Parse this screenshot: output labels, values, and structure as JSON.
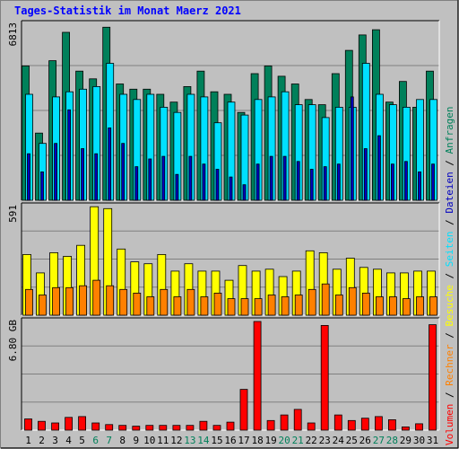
{
  "chart_data": {
    "title": "Tages-Statistik im Monat Maerz 2021",
    "type": "bar",
    "x": [
      "1",
      "2",
      "3",
      "4",
      "5",
      "6",
      "7",
      "8",
      "9",
      "10",
      "11",
      "12",
      "13",
      "14",
      "15",
      "16",
      "17",
      "18",
      "19",
      "20",
      "21",
      "22",
      "23",
      "24",
      "25",
      "26",
      "27",
      "28",
      "29",
      "30",
      "31"
    ],
    "weekend_days": [
      "6",
      "7",
      "13",
      "14",
      "20",
      "21",
      "27",
      "28"
    ],
    "right_legend": [
      "Anfragen",
      "Dateien",
      "Seiten",
      "Besuche",
      "Rechner",
      "Volumen"
    ],
    "panels": [
      {
        "ylabel": "6813",
        "ymax": 6813,
        "series": [
          {
            "name": "Anfragen",
            "color": "#00805a",
            "values": [
              5200,
              2600,
              5400,
              6500,
              5000,
              4700,
              6700,
              4500,
              4300,
              4300,
              4100,
              3800,
              4400,
              5000,
              4200,
              4100,
              3400,
              4900,
              5200,
              4800,
              4500,
              3900,
              3700,
              4900,
              5800,
              6400,
              6600,
              3800,
              4600,
              3600,
              5000
            ]
          },
          {
            "name": "Dateien",
            "color": "#0000c0",
            "values": [
              1800,
              1100,
              2200,
              3500,
              2000,
              1800,
              2800,
              2200,
              1300,
              1600,
              1700,
              1000,
              1700,
              1400,
              1200,
              900,
              600,
              1400,
              1700,
              1700,
              1500,
              1200,
              1300,
              1400,
              4000,
              2000,
              2500,
              1400,
              1500,
              1100,
              1400
            ]
          },
          {
            "name": "Seiten",
            "color": "#00e0ff",
            "values": [
              4100,
              2200,
              4000,
              4200,
              4300,
              4400,
              5300,
              4100,
              3900,
              4100,
              3600,
              3400,
              4100,
              4000,
              3000,
              3800,
              3300,
              3900,
              4000,
              4200,
              3700,
              3700,
              3200,
              3600,
              3600,
              5300,
              4100,
              3700,
              3600,
              3900,
              3900
            ]
          }
        ]
      },
      {
        "ylabel": "591",
        "ymax": 591,
        "series": [
          {
            "name": "Besuche",
            "color": "#ffff00",
            "values": [
              330,
              230,
              340,
              320,
              380,
              590,
              580,
              360,
              290,
              280,
              330,
              240,
              280,
              240,
              240,
              190,
              270,
              240,
              250,
              210,
              240,
              350,
              340,
              250,
              310,
              260,
              250,
              230,
              230,
              240,
              240
            ]
          },
          {
            "name": "Rechner",
            "color": "#ff8000",
            "values": [
              140,
              110,
              150,
              150,
              160,
              190,
              160,
              140,
              120,
              100,
              140,
              100,
              140,
              100,
              120,
              90,
              90,
              90,
              110,
              100,
              110,
              140,
              170,
              110,
              150,
              120,
              100,
              100,
              90,
              100,
              100
            ]
          }
        ]
      },
      {
        "ylabel": "6.80 GB",
        "ymax": 6.8,
        "series": [
          {
            "name": "Volumen",
            "color": "#ff0000",
            "values": [
              0.7,
              0.55,
              0.45,
              0.8,
              0.85,
              0.45,
              0.35,
              0.3,
              0.25,
              0.3,
              0.3,
              0.3,
              0.3,
              0.55,
              0.3,
              0.5,
              2.55,
              6.8,
              0.6,
              0.95,
              1.3,
              0.45,
              6.55,
              0.95,
              0.6,
              0.75,
              0.85,
              0.65,
              0.2,
              0.4,
              6.6
            ]
          }
        ]
      }
    ]
  }
}
